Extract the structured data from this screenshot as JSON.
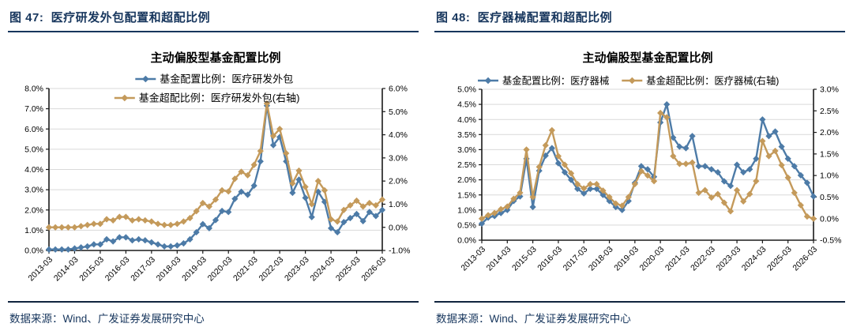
{
  "page": {
    "panels": [
      {
        "header": "图 47:  医疗研发外包配置和超配比例",
        "source_note": "数据来源：Wind、广发证券发展研究中心"
      },
      {
        "header": "图 48:  医疗器械配置和超配比例",
        "source_note": "数据来源：Wind、广发证券发展研究中心"
      }
    ]
  },
  "colors": {
    "navy": "#17365d",
    "blue": "#4d7ba7",
    "gold": "#c49a5b",
    "grid": "#d9d9d9",
    "axis": "#1a1a1a",
    "text": "#000000"
  },
  "chart_data": [
    {
      "type": "line",
      "title": "主动偏股型基金配置比例",
      "x_start": "2013-03",
      "x_freq": "quarterly",
      "x_tick_labels": [
        "2013-03",
        "2014-03",
        "2015-03",
        "2016-03",
        "2017-03",
        "2018-03",
        "2019-03",
        "2020-03",
        "2021-03",
        "2022-03",
        "2023-03",
        "2024-03",
        "2025-03",
        "2026-03"
      ],
      "left_axis": {
        "min": 0,
        "max": 8,
        "step": 1,
        "format": "percent",
        "decimals": 1
      },
      "right_axis": {
        "min": -1,
        "max": 6,
        "step": 1,
        "format": "percent",
        "decimals": 1
      },
      "grid": true,
      "legend_position": "top-stacked",
      "series": [
        {
          "name": "基金配置比例：医疗研发外包",
          "axis": "left",
          "color_key": "blue",
          "marker": "diamond",
          "values": [
            0.05,
            0.05,
            0.05,
            0.05,
            0.1,
            0.15,
            0.2,
            0.3,
            0.3,
            0.55,
            0.45,
            0.65,
            0.65,
            0.5,
            0.55,
            0.5,
            0.4,
            0.3,
            0.2,
            0.2,
            0.25,
            0.35,
            0.55,
            0.9,
            1.3,
            1.1,
            1.5,
            1.95,
            1.9,
            2.55,
            2.9,
            2.75,
            3.2,
            4.4,
            7.15,
            5.2,
            5.6,
            4.4,
            2.85,
            3.5,
            2.6,
            1.65,
            2.9,
            2.4,
            1.1,
            0.9,
            1.4,
            1.6,
            1.8,
            1.45,
            1.9,
            1.7,
            2.0
          ]
        },
        {
          "name": "基金超配比例：医疗研发外包(右轴)",
          "axis": "right",
          "color_key": "gold",
          "marker": "diamond",
          "values": [
            0.0,
            0.0,
            0.0,
            0.0,
            0.0,
            0.05,
            0.1,
            0.15,
            0.15,
            0.35,
            0.3,
            0.45,
            0.45,
            0.3,
            0.35,
            0.3,
            0.25,
            0.15,
            0.1,
            0.1,
            0.15,
            0.25,
            0.4,
            0.7,
            1.05,
            0.9,
            1.2,
            1.6,
            1.55,
            2.1,
            2.4,
            2.25,
            2.7,
            3.3,
            5.35,
            3.95,
            4.25,
            3.2,
            1.9,
            2.45,
            1.75,
            1.0,
            2.0,
            1.6,
            0.35,
            0.25,
            0.75,
            0.95,
            1.15,
            0.9,
            1.05,
            0.95,
            1.2
          ]
        }
      ]
    },
    {
      "type": "line",
      "title": "主动偏股型基金配置比例",
      "x_start": "2013-03",
      "x_freq": "quarterly",
      "x_tick_labels": [
        "2013-03",
        "2014-03",
        "2015-03",
        "2016-03",
        "2017-03",
        "2018-03",
        "2019-03",
        "2020-03",
        "2021-03",
        "2022-03",
        "2023-03",
        "2024-03",
        "2025-03",
        "2026-03"
      ],
      "left_axis": {
        "min": 0,
        "max": 5,
        "step": 0.5,
        "format": "percent",
        "decimals": 1
      },
      "right_axis": {
        "min": -0.5,
        "max": 3,
        "step": 0.5,
        "format": "percent",
        "decimals": 1
      },
      "grid": true,
      "legend_position": "top-row",
      "series": [
        {
          "name": "基金配置比例：医疗器械",
          "axis": "left",
          "color_key": "blue",
          "marker": "diamond",
          "values": [
            0.55,
            0.75,
            0.8,
            0.9,
            1.0,
            1.3,
            1.45,
            2.7,
            1.1,
            2.3,
            2.8,
            3.05,
            2.55,
            2.25,
            2.0,
            1.7,
            1.55,
            1.7,
            1.7,
            1.5,
            1.3,
            1.1,
            1.0,
            1.3,
            1.9,
            2.45,
            2.35,
            2.1,
            3.9,
            4.5,
            3.4,
            3.1,
            3.05,
            3.45,
            2.45,
            2.45,
            2.35,
            2.25,
            1.95,
            1.8,
            2.5,
            2.25,
            2.35,
            2.7,
            4.0,
            3.45,
            3.6,
            3.1,
            2.7,
            2.45,
            2.15,
            1.9,
            1.45
          ]
        },
        {
          "name": "基金超配比例：医疗器械(右轴)",
          "axis": "right",
          "color_key": "gold",
          "marker": "diamond",
          "values": [
            0.0,
            0.08,
            0.13,
            0.22,
            0.28,
            0.46,
            0.6,
            1.6,
            0.5,
            1.2,
            1.7,
            2.05,
            1.45,
            1.25,
            1.05,
            0.8,
            0.7,
            0.8,
            0.8,
            0.65,
            0.5,
            0.35,
            0.3,
            0.5,
            0.8,
            1.1,
            1.0,
            0.87,
            2.45,
            2.35,
            1.45,
            1.27,
            1.27,
            1.3,
            0.6,
            0.66,
            0.49,
            0.57,
            0.37,
            0.17,
            0.66,
            0.4,
            0.57,
            0.87,
            1.8,
            1.45,
            1.57,
            1.24,
            0.95,
            0.6,
            0.31,
            0.05,
            0.0
          ]
        }
      ]
    }
  ]
}
